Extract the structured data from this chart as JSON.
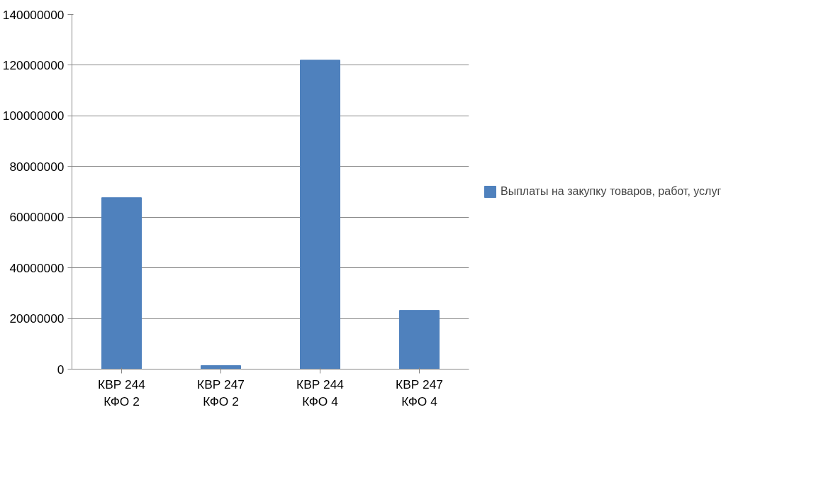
{
  "chart_data": {
    "type": "bar",
    "categories": [
      "КВР 244\nКФО 2",
      "КВР 247\nКФО 2",
      "КВР 244\nКФО 4",
      "КВР 247\nКФО 4"
    ],
    "series": [
      {
        "name": "Выплаты на закупку товаров, работ, услуг",
        "color": "#4f81bd",
        "values": [
          67700000,
          1400000,
          122000000,
          23200000
        ]
      }
    ],
    "ylim": [
      0,
      140000000
    ],
    "yticks": [
      0,
      20000000,
      40000000,
      60000000,
      80000000,
      100000000,
      120000000,
      140000000
    ],
    "grid": "y",
    "legend": "right"
  }
}
